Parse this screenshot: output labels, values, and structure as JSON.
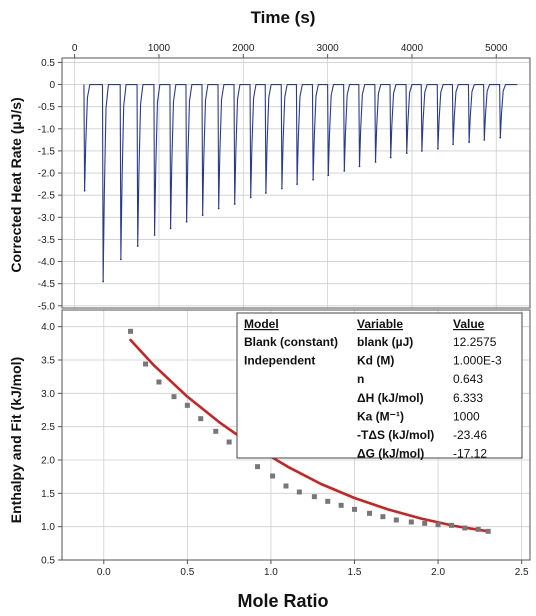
{
  "chart_data": [
    {
      "type": "line",
      "title": "Time (s)",
      "xlabel": "Time (s)",
      "ylabel": "Corrected Heat Rate (µJ/s)",
      "xlim": [
        -150,
        5400
      ],
      "ylim": [
        -5.05,
        0.6
      ],
      "x_ticks": [
        0,
        1000,
        2000,
        3000,
        4000,
        5000
      ],
      "y_ticks": [
        0.5,
        0,
        -0.5,
        -1.0,
        -1.5,
        -2.0,
        -2.5,
        -3.0,
        -3.5,
        -4.0,
        -4.5,
        -5.0
      ],
      "x_tick_labels": [
        "0",
        "1000",
        "2000",
        "3000",
        "4000",
        "5000"
      ],
      "y_tick_labels": [
        "0.5",
        "0",
        "-0.5",
        "-1.0",
        "-1.5",
        "-2.0",
        "-2.5",
        "-3.0",
        "-3.5",
        "-4.0",
        "-4.5",
        "-5.0"
      ],
      "grid": true,
      "color": "#2b3a8f",
      "baseline": 0,
      "trace_end": 5250,
      "series": [
        {
          "injection_times": [
            110,
            330,
            540,
            740,
            940,
            1130,
            1320,
            1510,
            1700,
            1890,
            2080,
            2260,
            2450,
            2630,
            2820,
            3000,
            3190,
            3370,
            3560,
            3740,
            3930,
            4110,
            4300,
            4480,
            4670,
            4850,
            5040
          ],
          "peak_values": [
            -2.4,
            -4.45,
            -3.95,
            -3.65,
            -3.4,
            -3.25,
            -3.1,
            -2.95,
            -2.8,
            -2.7,
            -2.55,
            -2.45,
            -2.35,
            -2.25,
            -2.15,
            -2.05,
            -1.95,
            -1.85,
            -1.75,
            -1.65,
            -1.55,
            -1.5,
            -1.45,
            -1.35,
            -1.3,
            -1.25,
            -1.2
          ]
        }
      ]
    },
    {
      "type": "scatter",
      "xlabel": "Mole Ratio",
      "ylabel": "Enthalpy and Fit (kJ/mol)",
      "xlim": [
        -0.25,
        2.55
      ],
      "ylim": [
        0.5,
        4.25
      ],
      "x_ticks": [
        0,
        0.5,
        1.0,
        1.5,
        2.0,
        2.5
      ],
      "y_ticks": [
        0.5,
        1.0,
        1.5,
        2.0,
        2.5,
        3.0,
        3.5,
        4.0
      ],
      "x_tick_labels": [
        "0.0",
        "0.5",
        "1.0",
        "1.5",
        "2.0",
        "2.5"
      ],
      "y_tick_labels": [
        "0.5",
        "1.0",
        "1.5",
        "2.0",
        "2.5",
        "3.0",
        "3.5",
        "4.0"
      ],
      "grid": true,
      "series": [
        {
          "kind": "points",
          "color": "#777777",
          "x": [
            0.16,
            0.25,
            0.33,
            0.42,
            0.5,
            0.58,
            0.67,
            0.75,
            0.84,
            0.92,
            1.01,
            1.09,
            1.17,
            1.26,
            1.34,
            1.42,
            1.5,
            1.59,
            1.67,
            1.75,
            1.84,
            1.92,
            2.0,
            2.08,
            2.16,
            2.24,
            2.3
          ],
          "y": [
            3.93,
            3.44,
            3.17,
            2.95,
            2.82,
            2.62,
            2.43,
            2.27,
            2.13,
            1.9,
            1.76,
            1.61,
            1.52,
            1.45,
            1.38,
            1.32,
            1.26,
            1.2,
            1.15,
            1.1,
            1.07,
            1.05,
            1.03,
            1.02,
            0.98,
            0.96,
            0.93
          ]
        },
        {
          "kind": "fit",
          "color": "#cc2222",
          "x": [
            0.16,
            0.3,
            0.5,
            0.7,
            0.9,
            1.1,
            1.3,
            1.5,
            1.7,
            1.9,
            2.1,
            2.3
          ],
          "y": [
            3.8,
            3.42,
            2.95,
            2.55,
            2.2,
            1.9,
            1.64,
            1.43,
            1.26,
            1.12,
            1.01,
            0.93
          ]
        }
      ],
      "results_table": {
        "headers": [
          "Model",
          "Variable",
          "Value"
        ],
        "rows": [
          [
            "Blank (constant)",
            "blank (µJ)",
            "12.2575"
          ],
          [
            "Independent",
            "Kd (M)",
            "1.000E-3"
          ],
          [
            "",
            "n",
            "0.643"
          ],
          [
            "",
            "ΔH (kJ/mol)",
            "6.333"
          ],
          [
            "",
            "Ka (M⁻¹)",
            "1000"
          ],
          [
            "",
            "-TΔS (kJ/mol)",
            "-23.46"
          ],
          [
            "",
            "ΔG (kJ/mol)",
            "-17.12"
          ]
        ]
      }
    }
  ]
}
